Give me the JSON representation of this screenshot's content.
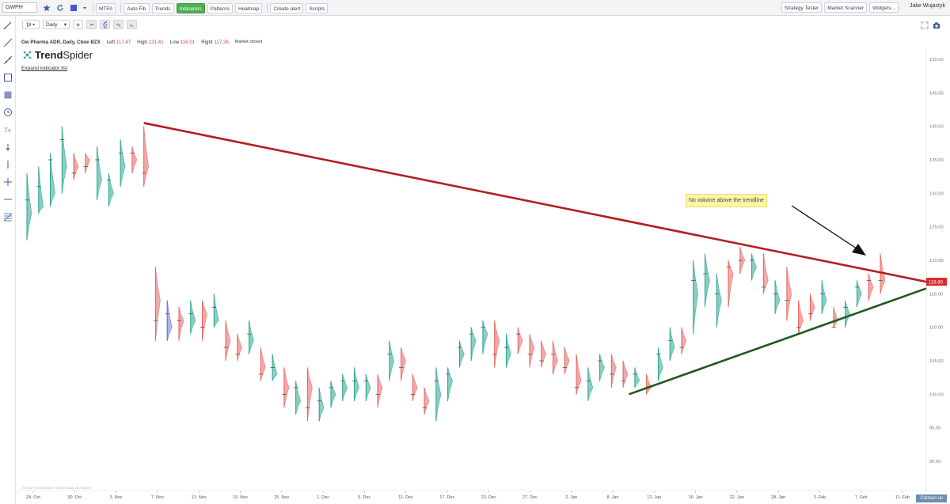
{
  "toolbar": {
    "symbol": "GWPH",
    "buttons": [
      "MTFA",
      "Auto Fib",
      "Trends",
      "Indicators",
      "Patterns",
      "Heatmap",
      "Create alert",
      "Scripts"
    ],
    "active_button": "Indicators",
    "right_buttons": [
      "Strategy Tester",
      "Market Scanner",
      "Widgets..."
    ],
    "user": "Jake Wujastyk",
    "accent": "#4caf50"
  },
  "subtoolbar": {
    "timeframe": "Daily"
  },
  "header": {
    "title": "Gw Pharma ADR, Daily, Cboe BZX",
    "left_label": "Left",
    "left_value": "117.47",
    "high_label": "High",
    "high_value": "121.41",
    "low_label": "Low",
    "low_value": "116.01",
    "right_label": "Right",
    "right_value": "117.26",
    "market_status": "Market closed"
  },
  "logo": {
    "bold": "Trend",
    "regular": "Spider"
  },
  "expand_link": "Expand indicator list",
  "annotation": "No volume above the trendline",
  "copyright": "©2019 TrendSpider. Market data via Xignite",
  "contact": "Contact us",
  "chart_data": {
    "type": "volume-profile-candles",
    "price_label": "116.80",
    "y_ticks": [
      "150.00",
      "145.00",
      "140.00",
      "135.00",
      "130.00",
      "125.00",
      "120.00",
      "115.00",
      "110.00",
      "105.00",
      "100.00",
      "95.00",
      "90.00"
    ],
    "x_ticks": [
      "24. Oct",
      "30. Oct",
      "3. Nov",
      "7. Nov",
      "13. Nov",
      "19. Nov",
      "25. Nov",
      "1. Dec",
      "5. Dec",
      "11. Dec",
      "17. Dec",
      "23. Dec",
      "27. Dec",
      "2. Jan",
      "8. Jan",
      "12. Jan",
      "16. Jan",
      "22. Jan",
      "28. Jan",
      "3. Feb",
      "7. Feb",
      "11. Feb"
    ],
    "ylim": [
      87,
      152
    ],
    "candles": [
      [
        123,
        133,
        127,
        129,
        1
      ],
      [
        127,
        134,
        128,
        131,
        1
      ],
      [
        128,
        136,
        130,
        135,
        1
      ],
      [
        130,
        140,
        134,
        138,
        1
      ],
      [
        132,
        136,
        134,
        133,
        0
      ],
      [
        133,
        136,
        135,
        134,
        0
      ],
      [
        129,
        137,
        132,
        135,
        1
      ],
      [
        128,
        133,
        130,
        132,
        1
      ],
      [
        131,
        138,
        134,
        136,
        1
      ],
      [
        133,
        137,
        135,
        136,
        0
      ],
      [
        131,
        140,
        134,
        133,
        0
      ],
      [
        108,
        119,
        114,
        111,
        0
      ],
      [
        108,
        114,
        110,
        112,
        2
      ],
      [
        108,
        113,
        111,
        111,
        0
      ],
      [
        109,
        114,
        111,
        112,
        1
      ],
      [
        108,
        114,
        112,
        110,
        0
      ],
      [
        110,
        115,
        111,
        113,
        1
      ],
      [
        105,
        111,
        108,
        107,
        0
      ],
      [
        105,
        109,
        107,
        106,
        0
      ],
      [
        106,
        111,
        108,
        109,
        1
      ],
      [
        102,
        107,
        104,
        103,
        0
      ],
      [
        102,
        106,
        103,
        104,
        1
      ],
      [
        98,
        104,
        101,
        100,
        0
      ],
      [
        97,
        102,
        99,
        101,
        1
      ],
      [
        96,
        104,
        101,
        98,
        0
      ],
      [
        96,
        101,
        98,
        99,
        1
      ],
      [
        98,
        102,
        100,
        101,
        1
      ],
      [
        99,
        103,
        101,
        102,
        1
      ],
      [
        99,
        104,
        101,
        102,
        1
      ],
      [
        99,
        103,
        101,
        102,
        1
      ],
      [
        98,
        103,
        101,
        100,
        0
      ],
      [
        102,
        108,
        105,
        106,
        1
      ],
      [
        102,
        107,
        105,
        104,
        0
      ],
      [
        99,
        103,
        101,
        100,
        0
      ],
      [
        97,
        101,
        99,
        98,
        0
      ],
      [
        96,
        104,
        100,
        102,
        1
      ],
      [
        99,
        104,
        102,
        103,
        1
      ],
      [
        104,
        108,
        106,
        107,
        1
      ],
      [
        105,
        110,
        108,
        109,
        1
      ],
      [
        106,
        111,
        109,
        110,
        1
      ],
      [
        104,
        111,
        108,
        106,
        0
      ],
      [
        104,
        109,
        106,
        107,
        1
      ],
      [
        106,
        110,
        108,
        109,
        0
      ],
      [
        104,
        109,
        107,
        106,
        0
      ],
      [
        104,
        108,
        106,
        105,
        0
      ],
      [
        103,
        108,
        105,
        106,
        0
      ],
      [
        103,
        107,
        105,
        104,
        0
      ],
      [
        100,
        106,
        102,
        101,
        0
      ],
      [
        99,
        104,
        101,
        102,
        1
      ],
      [
        102,
        106,
        104,
        105,
        1
      ],
      [
        101,
        106,
        104,
        103,
        0
      ],
      [
        101,
        105,
        103,
        102,
        0
      ],
      [
        101,
        104,
        102,
        103,
        1
      ],
      [
        100,
        103,
        101,
        101,
        0
      ],
      [
        102,
        107,
        104,
        106,
        1
      ],
      [
        105,
        110,
        107,
        108,
        1
      ],
      [
        106,
        110,
        108,
        107,
        0
      ],
      [
        109,
        120,
        115,
        117,
        1
      ],
      [
        113,
        121,
        117,
        118,
        1
      ],
      [
        110,
        118,
        114,
        115,
        1
      ],
      [
        113,
        120,
        118,
        119,
        0
      ],
      [
        118,
        122,
        120,
        120,
        0
      ],
      [
        117,
        121,
        119,
        120,
        1
      ],
      [
        115,
        121,
        117,
        116,
        0
      ],
      [
        112,
        117,
        114,
        115,
        1
      ],
      [
        111,
        119,
        115,
        114,
        0
      ],
      [
        109,
        114,
        111,
        110,
        0
      ],
      [
        111,
        115,
        113,
        112,
        0
      ],
      [
        112,
        117,
        114,
        115,
        1
      ],
      [
        110,
        113,
        111,
        110,
        0
      ],
      [
        110,
        114,
        112,
        113,
        1
      ],
      [
        113,
        117,
        115,
        116,
        1
      ],
      [
        114,
        118,
        116,
        117,
        0
      ],
      [
        115,
        121,
        117,
        117,
        0
      ]
    ]
  }
}
